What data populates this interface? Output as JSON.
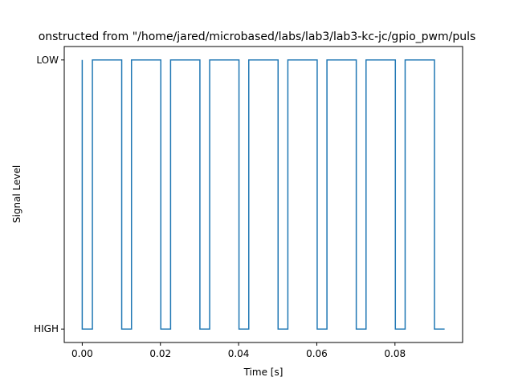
{
  "chart_data": {
    "type": "line",
    "title": "onstructed from \"/home/jared/microbased/labs/lab3/lab3-kc-jc/gpio_pwm/puls",
    "xlabel": "Time [s]",
    "ylabel": "Signal Level",
    "xlim": [
      -0.0046,
      0.0973
    ],
    "ylim": [
      -0.05,
      1.05
    ],
    "x_ticks": [
      0.0,
      0.02,
      0.04,
      0.06,
      0.08
    ],
    "x_tick_labels": [
      "0.00",
      "0.02",
      "0.04",
      "0.06",
      "0.08"
    ],
    "y_ticks": [
      0,
      1
    ],
    "y_tick_labels": [
      "HIGH",
      "LOW"
    ],
    "grid": false,
    "series": [
      {
        "color": "#1f77b4",
        "step": "post",
        "points": [
          [
            0.0,
            1
          ],
          [
            0.0,
            0
          ],
          [
            0.0026,
            0
          ],
          [
            0.0026,
            1
          ],
          [
            0.0101,
            1
          ],
          [
            0.0101,
            0
          ],
          [
            0.0126,
            0
          ],
          [
            0.0126,
            1
          ],
          [
            0.0201,
            1
          ],
          [
            0.0201,
            0
          ],
          [
            0.0226,
            0
          ],
          [
            0.0226,
            1
          ],
          [
            0.0301,
            1
          ],
          [
            0.0301,
            0
          ],
          [
            0.0326,
            0
          ],
          [
            0.0326,
            1
          ],
          [
            0.0401,
            1
          ],
          [
            0.0401,
            0
          ],
          [
            0.0426,
            0
          ],
          [
            0.0426,
            1
          ],
          [
            0.0501,
            1
          ],
          [
            0.0501,
            0
          ],
          [
            0.0526,
            0
          ],
          [
            0.0526,
            1
          ],
          [
            0.0601,
            1
          ],
          [
            0.0601,
            0
          ],
          [
            0.0626,
            0
          ],
          [
            0.0626,
            1
          ],
          [
            0.0701,
            1
          ],
          [
            0.0701,
            0
          ],
          [
            0.0726,
            0
          ],
          [
            0.0726,
            1
          ],
          [
            0.0801,
            1
          ],
          [
            0.0801,
            0
          ],
          [
            0.0826,
            0
          ],
          [
            0.0826,
            1
          ],
          [
            0.0901,
            1
          ],
          [
            0.0901,
            0
          ],
          [
            0.0927,
            0
          ]
        ]
      }
    ]
  }
}
